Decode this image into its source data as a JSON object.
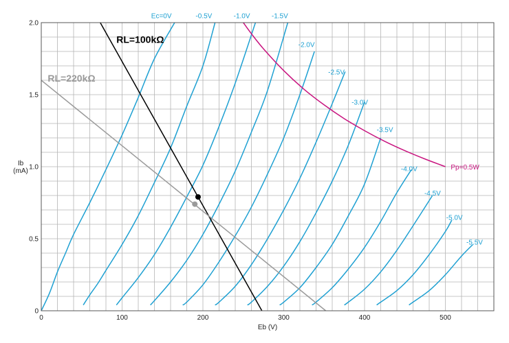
{
  "chart_data": {
    "type": "line",
    "title": "",
    "xlabel": "Eb (V)",
    "ylabel": [
      "Ib",
      "(mA)"
    ],
    "xlim": [
      0,
      560
    ],
    "ylim": [
      0,
      2.0
    ],
    "x_ticks": [
      0,
      100,
      200,
      300,
      400,
      500
    ],
    "y_ticks": [
      0,
      0.5,
      1.0,
      1.5,
      2.0
    ],
    "x_tick_labels": [
      "0",
      "100",
      "200",
      "300",
      "400",
      "500"
    ],
    "y_tick_labels": [
      "0",
      "0.5",
      "1.0",
      "1.5",
      "2.0"
    ],
    "grid": true,
    "colors": {
      "grid": "#b4b4b4",
      "plate_curves": "#1ea0d2",
      "dissipation": "#c8147f",
      "load_100k": "#000000",
      "load_220k": "#9a9a9a"
    },
    "series": [
      {
        "name": "Ec=0V",
        "label_at": [
          136,
          2.03
        ],
        "points": [
          [
            0,
            0
          ],
          [
            10,
            0.12
          ],
          [
            20,
            0.27
          ],
          [
            30,
            0.4
          ],
          [
            40,
            0.53
          ],
          [
            60,
            0.75
          ],
          [
            80,
            0.98
          ],
          [
            100,
            1.22
          ],
          [
            120,
            1.48
          ],
          [
            140,
            1.75
          ],
          [
            165,
            2.0
          ]
        ]
      },
      {
        "name": "-0.5V",
        "label_at": [
          191,
          2.03
        ],
        "points": [
          [
            52,
            0.04
          ],
          [
            60,
            0.11
          ],
          [
            70,
            0.19
          ],
          [
            80,
            0.28
          ],
          [
            100,
            0.46
          ],
          [
            120,
            0.66
          ],
          [
            140,
            0.89
          ],
          [
            160,
            1.13
          ],
          [
            180,
            1.42
          ],
          [
            200,
            1.7
          ],
          [
            215,
            2.0
          ]
        ]
      },
      {
        "name": "-1.0V",
        "label_at": [
          238,
          2.03
        ],
        "points": [
          [
            93,
            0.04
          ],
          [
            100,
            0.09
          ],
          [
            120,
            0.23
          ],
          [
            140,
            0.39
          ],
          [
            160,
            0.58
          ],
          [
            180,
            0.79
          ],
          [
            200,
            1.01
          ],
          [
            220,
            1.28
          ],
          [
            240,
            1.58
          ],
          [
            265,
            2.0
          ]
        ]
      },
      {
        "name": "-1.5V",
        "label_at": [
          285,
          2.03
        ],
        "points": [
          [
            135,
            0.04
          ],
          [
            140,
            0.07
          ],
          [
            160,
            0.2
          ],
          [
            180,
            0.35
          ],
          [
            200,
            0.53
          ],
          [
            220,
            0.74
          ],
          [
            240,
            0.97
          ],
          [
            260,
            1.24
          ],
          [
            280,
            1.53
          ],
          [
            305,
            2.0
          ]
        ]
      },
      {
        "name": "-2.0V",
        "label_at": [
          318,
          1.83
        ],
        "points": [
          [
            175,
            0.04
          ],
          [
            180,
            0.06
          ],
          [
            200,
            0.18
          ],
          [
            220,
            0.34
          ],
          [
            240,
            0.52
          ],
          [
            260,
            0.72
          ],
          [
            280,
            0.95
          ],
          [
            300,
            1.2
          ],
          [
            320,
            1.5
          ],
          [
            338,
            1.8
          ]
        ]
      },
      {
        "name": "-2.5V",
        "label_at": [
          355,
          1.64
        ],
        "points": [
          [
            215,
            0.04
          ],
          [
            220,
            0.06
          ],
          [
            240,
            0.17
          ],
          [
            260,
            0.32
          ],
          [
            280,
            0.5
          ],
          [
            300,
            0.7
          ],
          [
            320,
            0.92
          ],
          [
            340,
            1.17
          ],
          [
            358,
            1.41
          ],
          [
            376,
            1.66
          ]
        ]
      },
      {
        "name": "-3.0V",
        "label_at": [
          384,
          1.43
        ],
        "points": [
          [
            255,
            0.04
          ],
          [
            260,
            0.06
          ],
          [
            280,
            0.17
          ],
          [
            300,
            0.31
          ],
          [
            320,
            0.48
          ],
          [
            340,
            0.68
          ],
          [
            360,
            0.9
          ],
          [
            380,
            1.15
          ],
          [
            400,
            1.45
          ]
        ]
      },
      {
        "name": "-3.5V",
        "label_at": [
          415,
          1.24
        ],
        "points": [
          [
            295,
            0.04
          ],
          [
            300,
            0.06
          ],
          [
            320,
            0.16
          ],
          [
            340,
            0.3
          ],
          [
            360,
            0.46
          ],
          [
            380,
            0.66
          ],
          [
            400,
            0.88
          ],
          [
            420,
            1.2
          ]
        ]
      },
      {
        "name": "-4.0V",
        "label_at": [
          445,
          0.97
        ],
        "points": [
          [
            335,
            0.04
          ],
          [
            340,
            0.06
          ],
          [
            360,
            0.16
          ],
          [
            380,
            0.29
          ],
          [
            400,
            0.44
          ],
          [
            420,
            0.62
          ],
          [
            440,
            0.82
          ],
          [
            458,
            0.98
          ]
        ]
      },
      {
        "name": "-4.5V",
        "label_at": [
          474,
          0.8
        ],
        "points": [
          [
            375,
            0.04
          ],
          [
            380,
            0.06
          ],
          [
            400,
            0.15
          ],
          [
            420,
            0.27
          ],
          [
            440,
            0.42
          ],
          [
            460,
            0.59
          ],
          [
            484,
            0.8
          ]
        ]
      },
      {
        "name": "-5.0V",
        "label_at": [
          501,
          0.63
        ],
        "points": [
          [
            415,
            0.04
          ],
          [
            420,
            0.06
          ],
          [
            440,
            0.14
          ],
          [
            460,
            0.25
          ],
          [
            480,
            0.39
          ],
          [
            500,
            0.55
          ],
          [
            508,
            0.63
          ]
        ]
      },
      {
        "name": "-5.5V",
        "label_at": [
          526,
          0.46
        ],
        "points": [
          [
            455,
            0.04
          ],
          [
            460,
            0.06
          ],
          [
            480,
            0.14
          ],
          [
            500,
            0.25
          ],
          [
            520,
            0.38
          ],
          [
            534,
            0.46
          ]
        ]
      }
    ],
    "dissipation_curve": {
      "name": "Pp=0.5W",
      "label_at": [
        505,
        1.0
      ],
      "points": [
        [
          250,
          2.0
        ],
        [
          260,
          1.923
        ],
        [
          275,
          1.818
        ],
        [
          300,
          1.667
        ],
        [
          325,
          1.538
        ],
        [
          350,
          1.429
        ],
        [
          375,
          1.333
        ],
        [
          400,
          1.25
        ],
        [
          425,
          1.176
        ],
        [
          450,
          1.111
        ],
        [
          475,
          1.053
        ],
        [
          500,
          1.0
        ]
      ]
    },
    "load_lines": [
      {
        "name": "RL=100kΩ",
        "label_at": [
          93,
          1.86
        ],
        "points": [
          [
            73,
            2.0
          ],
          [
            273,
            0.0
          ]
        ],
        "color_key": "load_100k"
      },
      {
        "name": "RL=220kΩ",
        "label_at": [
          8,
          1.59
        ],
        "points": [
          [
            0,
            1.6
          ],
          [
            352,
            0.0
          ]
        ],
        "color_key": "load_220k"
      }
    ],
    "operating_points": [
      {
        "x": 194,
        "y": 0.79,
        "color_key": "load_100k"
      },
      {
        "x": 190,
        "y": 0.74,
        "color_key": "load_220k"
      }
    ]
  }
}
